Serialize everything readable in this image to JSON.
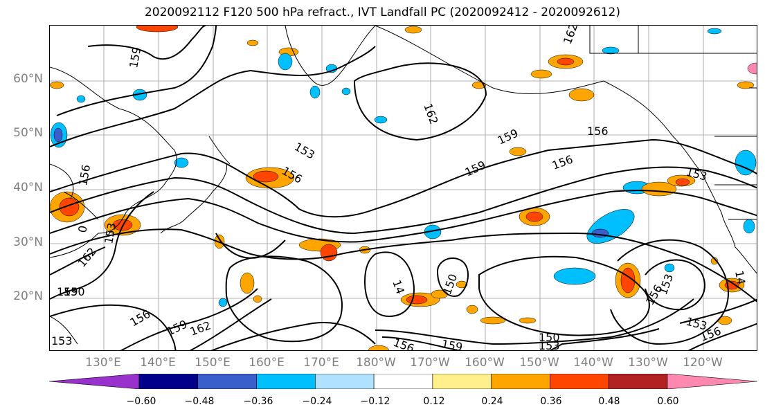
{
  "title": "2020092112 F120 500 hPa refract., IVT Landfall PC (2020092412 - 2020092612)",
  "lat_labels": [
    "60°N",
    "50°N",
    "40°N",
    "30°N",
    "20°N"
  ],
  "lon_labels": [
    "130°E",
    "140°E",
    "150°E",
    "160°E",
    "170°E",
    "180°W",
    "170°W",
    "160°W",
    "150°W",
    "140°W",
    "130°W",
    "120°W"
  ],
  "contour_labels": [
    "159",
    "162",
    "153",
    "156",
    "159",
    "159",
    "156",
    "156",
    "153",
    "162",
    "156",
    "153",
    "159",
    "162",
    "156",
    "150",
    "153",
    "156",
    "159",
    "150",
    "14",
    "150",
    "153",
    "156",
    "153",
    "156",
    "153",
    "0",
    "162",
    "159",
    "14"
  ],
  "colorbar": {
    "ticks": [
      "−0.60",
      "−0.48",
      "−0.36",
      "−0.24",
      "−0.12",
      "0.12",
      "0.24",
      "0.36",
      "0.48",
      "0.60"
    ],
    "colors": [
      "#9932cc",
      "#00008b",
      "#3a5fcd",
      "#00bfff",
      "#b0e2ff",
      "#ffffff",
      "#fff08c",
      "#ffa500",
      "#ff4500",
      "#b22222",
      "#ff88b0"
    ]
  }
}
